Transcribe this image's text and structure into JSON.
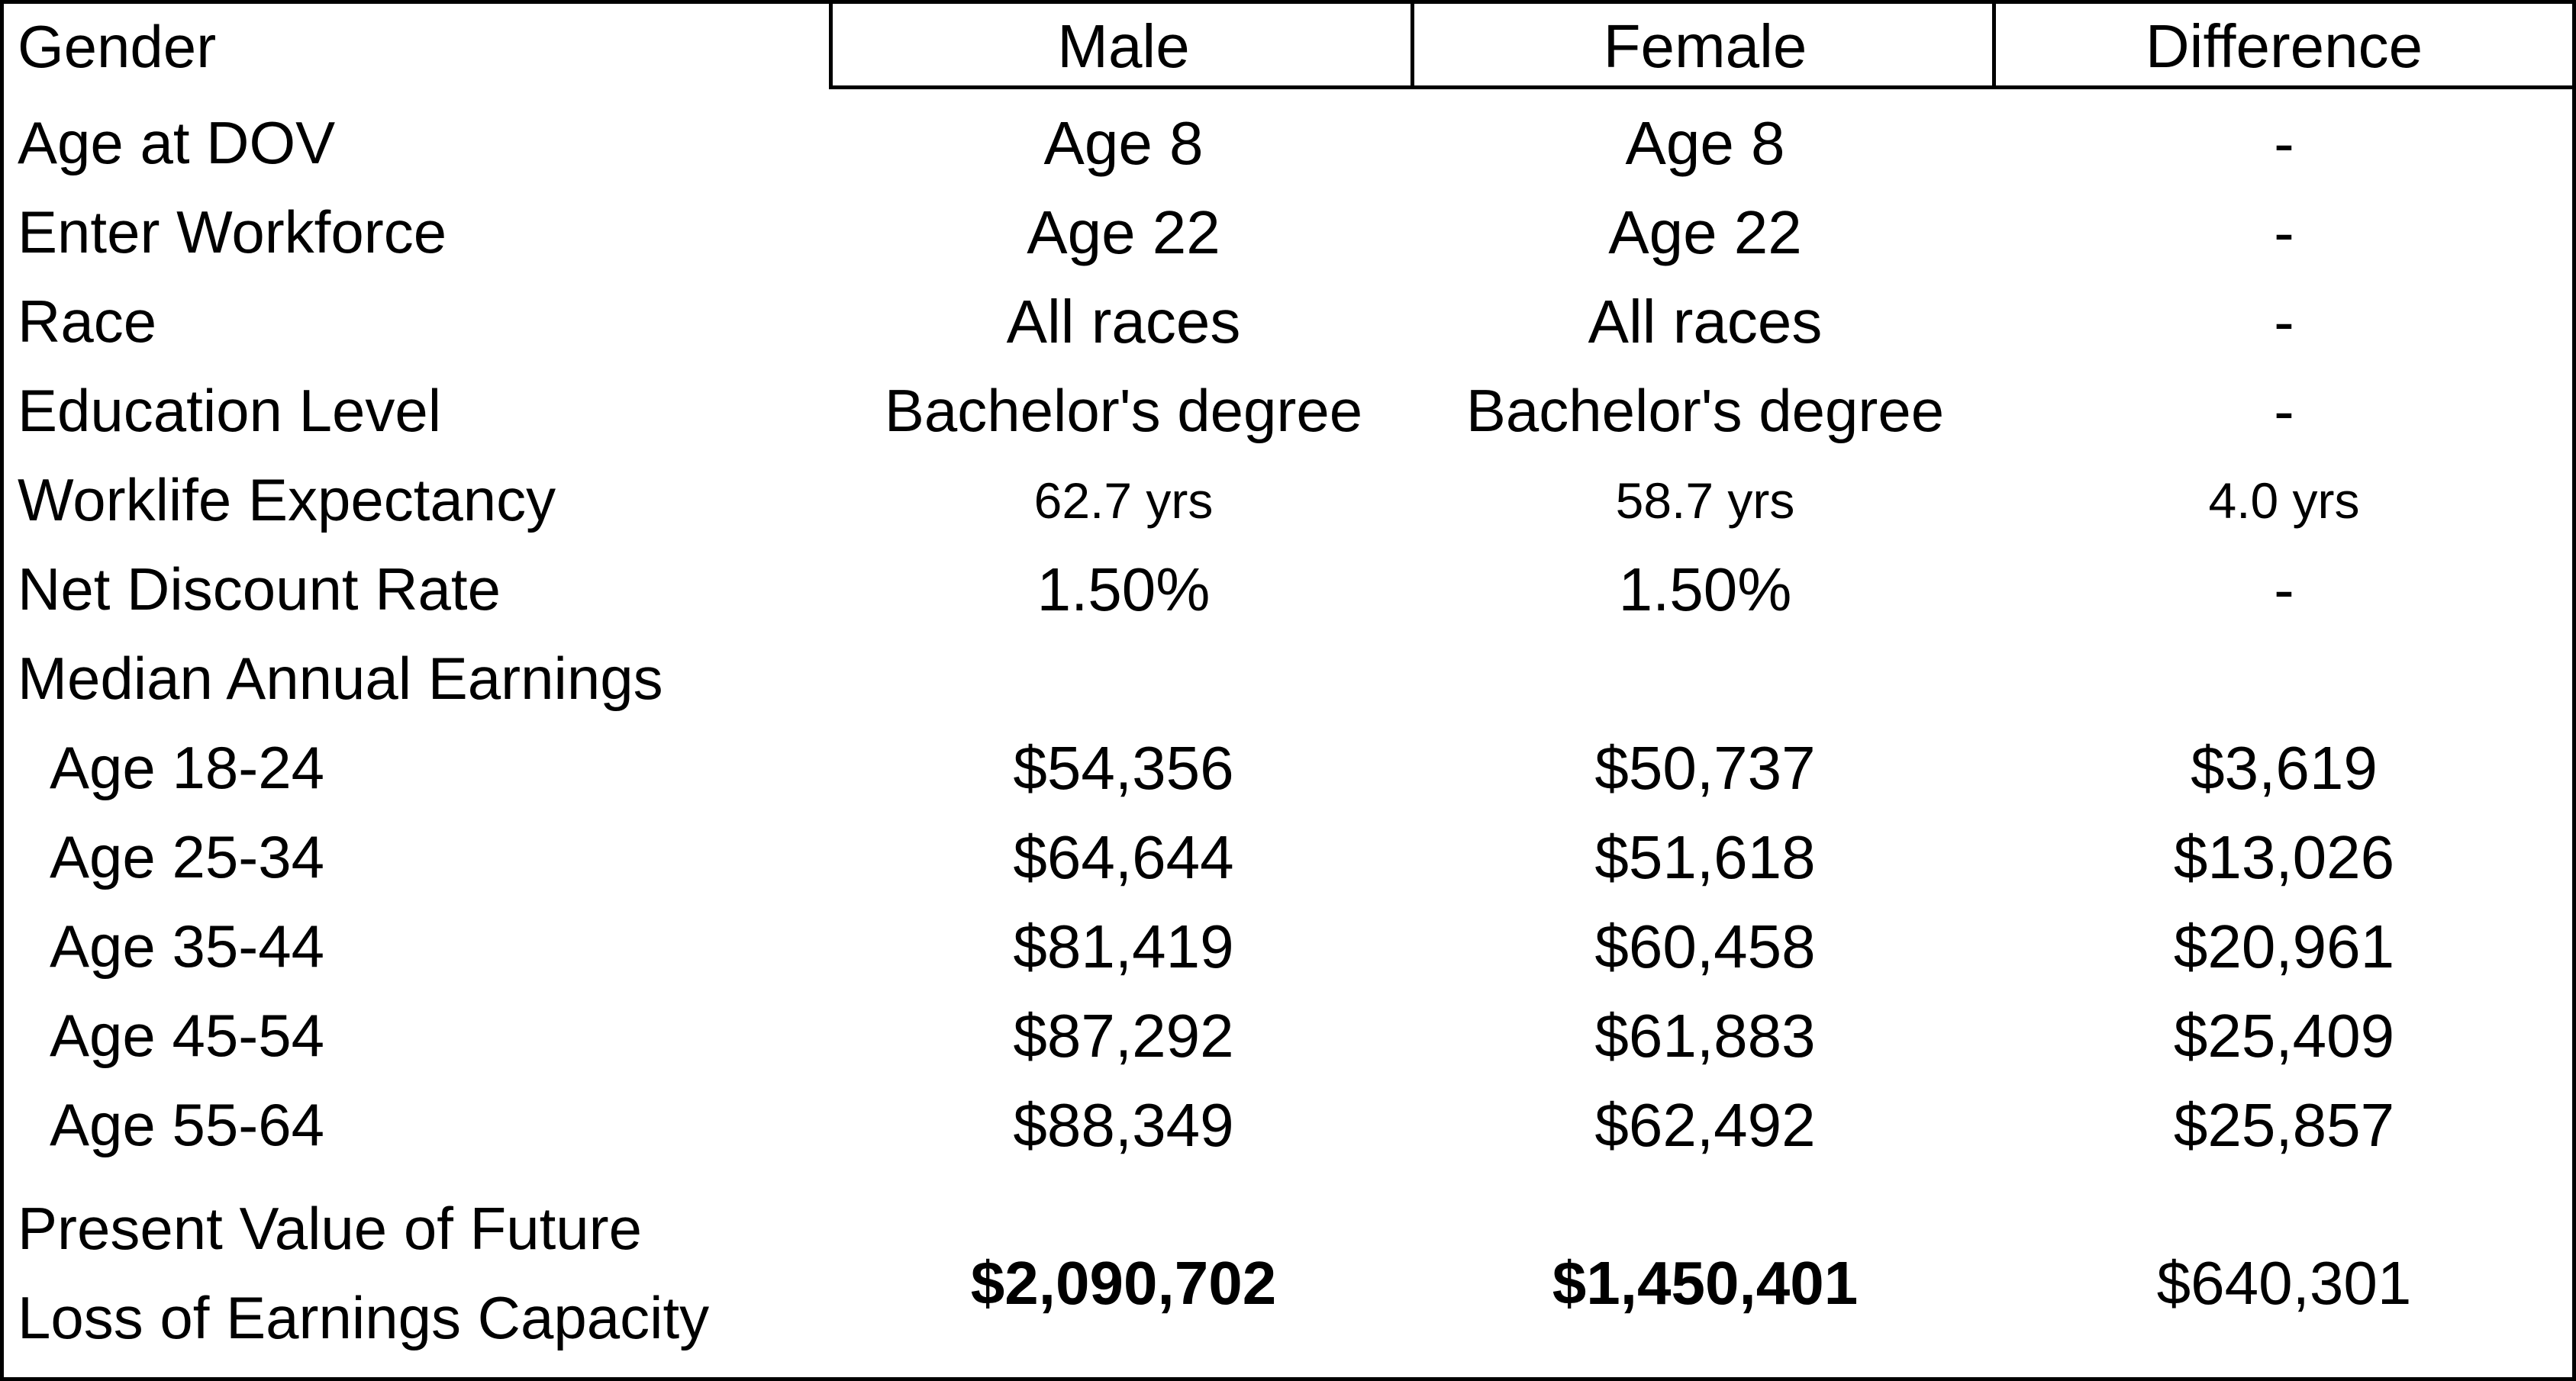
{
  "header": {
    "label": "Gender",
    "columns": [
      "Male",
      "Female",
      "Difference"
    ]
  },
  "rows": [
    {
      "label": "Age at DOV",
      "male": "Age 8",
      "female": "Age 8",
      "difference": "-"
    },
    {
      "label": "Enter Workforce",
      "male": "Age 22",
      "female": "Age 22",
      "difference": "-"
    },
    {
      "label": "Race",
      "male": "All races",
      "female": "All races",
      "difference": "-"
    },
    {
      "label": "Education Level",
      "male": "Bachelor's degree",
      "female": "Bachelor's degree",
      "difference": "-"
    },
    {
      "label": "Worklife Expectancy",
      "male": "62.7 yrs",
      "female": "58.7 yrs",
      "difference": "4.0 yrs"
    },
    {
      "label": "Net Discount Rate",
      "male": "1.50%",
      "female": "1.50%",
      "difference": "-"
    }
  ],
  "earnings": {
    "section_label": "Median Annual Earnings",
    "rows": [
      {
        "label": "Age 18-24",
        "male": "$54,356",
        "female": "$50,737",
        "difference": "$3,619"
      },
      {
        "label": "Age 25-34",
        "male": "$64,644",
        "female": "$51,618",
        "difference": "$13,026"
      },
      {
        "label": "Age 35-44",
        "male": "$81,419",
        "female": "$60,458",
        "difference": "$20,961"
      },
      {
        "label": "Age 45-54",
        "male": "$87,292",
        "female": "$61,883",
        "difference": "$25,409"
      },
      {
        "label": "Age 55-64",
        "male": "$88,349",
        "female": "$62,492",
        "difference": "$25,857"
      }
    ]
  },
  "present_value": {
    "label_line1": "Present Value of Future",
    "label_line2": "Loss of Earnings Capacity",
    "male": "$2,090,702",
    "female": "$1,450,401",
    "difference": "$640,301"
  }
}
